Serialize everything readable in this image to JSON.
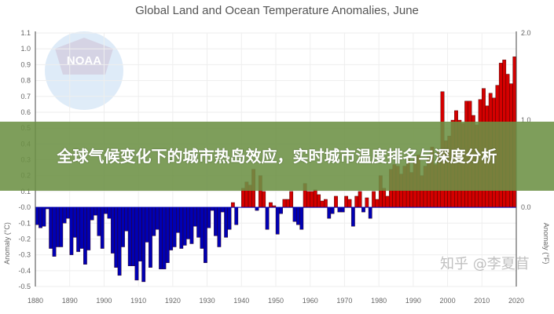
{
  "chart_data": {
    "type": "bar",
    "title": "Global Land and Ocean Temperature Anomalies, June",
    "ylabel": "Anomaly (°C)",
    "ylabel_right": "Anomaly (°F)",
    "xlabel": "",
    "ylim": [
      -0.5,
      1.1
    ],
    "ylim_right": [
      0.0,
      2.0
    ],
    "xlim": [
      1880,
      2020
    ],
    "yticks": [
      "1.1",
      "1.0",
      "0.9",
      "0.8",
      "0.7",
      "0.6",
      "0.5",
      "0.4",
      "0.3",
      "0.2",
      "0.1",
      "-0.0",
      "-0.1",
      "-0.2",
      "-0.3",
      "-0.4",
      "-0.5"
    ],
    "yticks_right": [
      "2.0",
      "1.0",
      "0.0"
    ],
    "xticks": [
      "1880",
      "1890",
      "1900",
      "1910",
      "1920",
      "1930",
      "1940",
      "1950",
      "1960",
      "1970",
      "1980",
      "1990",
      "2000",
      "2010",
      "2020"
    ],
    "grid": true,
    "positive_color": "#d40000",
    "negative_color": "#0000b4",
    "start_year": 1880,
    "values": [
      -0.11,
      -0.13,
      -0.12,
      -0.01,
      -0.26,
      -0.31,
      -0.25,
      -0.25,
      -0.1,
      -0.07,
      -0.3,
      -0.19,
      -0.28,
      -0.26,
      -0.36,
      -0.27,
      -0.08,
      -0.05,
      -0.18,
      -0.26,
      -0.04,
      -0.07,
      -0.29,
      -0.38,
      -0.43,
      -0.25,
      -0.15,
      -0.37,
      -0.37,
      -0.46,
      -0.34,
      -0.47,
      -0.22,
      -0.38,
      -0.18,
      -0.14,
      -0.39,
      -0.39,
      -0.35,
      -0.27,
      -0.25,
      -0.16,
      -0.26,
      -0.24,
      -0.2,
      -0.23,
      -0.12,
      -0.19,
      -0.26,
      -0.35,
      -0.13,
      -0.02,
      -0.18,
      -0.25,
      -0.03,
      -0.19,
      -0.14,
      0.03,
      -0.11,
      0.0,
      0.12,
      0.16,
      0.14,
      0.24,
      -0.02,
      0.2,
      0.1,
      -0.14,
      0.03,
      0.01,
      -0.17,
      -0.04,
      0.05,
      0.05,
      0.1,
      -0.09,
      -0.11,
      -0.14,
      0.15,
      0.1,
      0.1,
      0.11,
      0.08,
      0.04,
      0.05,
      -0.07,
      -0.04,
      0.07,
      -0.03,
      -0.03,
      0.07,
      0.05,
      -0.12,
      0.07,
      0.1,
      -0.03,
      0.06,
      -0.07,
      0.1,
      0.05,
      0.2,
      0.12,
      0.07,
      0.24,
      0.27,
      0.26,
      0.21,
      0.26,
      0.32,
      0.22,
      0.3,
      0.33,
      0.2,
      0.26,
      0.32,
      0.38,
      0.27,
      0.36,
      0.73,
      0.42,
      0.45,
      0.55,
      0.61,
      0.55,
      0.53,
      0.67,
      0.67,
      0.58,
      0.52,
      0.68,
      0.75,
      0.64,
      0.72,
      0.69,
      0.77,
      0.91,
      0.93,
      0.84,
      0.78,
      0.95
    ]
  },
  "watermark_logo": "NOAA",
  "watermark_text": "知乎 @李夏苜",
  "banner": {
    "text": "全球气候变化下的城市热岛效应，实时城市温度排名与深度分析"
  }
}
